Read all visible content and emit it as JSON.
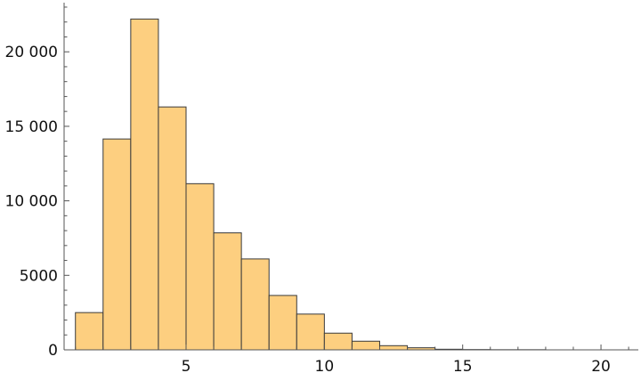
{
  "chart_data": {
    "type": "bar",
    "subtype": "histogram",
    "bin_edges": [
      1,
      2,
      3,
      4,
      5,
      6,
      7,
      8,
      9,
      10,
      11,
      12,
      13,
      14,
      15,
      16,
      17,
      18
    ],
    "values": [
      2500,
      14150,
      22200,
      16300,
      11150,
      7850,
      6100,
      3650,
      2400,
      1120,
      580,
      280,
      140,
      40,
      20,
      10,
      10
    ],
    "xlim": [
      0.6,
      21.3
    ],
    "ylim": [
      0,
      23400
    ],
    "xticks": [
      5,
      10,
      15,
      20
    ],
    "xtick_labels": [
      "5",
      "10",
      "15",
      "20"
    ],
    "yticks": [
      0,
      5000,
      10000,
      15000,
      20000
    ],
    "ytick_labels": [
      "0",
      "5000",
      "10 000",
      "15 000",
      "20 000"
    ],
    "grid": false,
    "colors": {
      "bar_fill": "#FDCF80",
      "bar_edge": "#3a3a3a",
      "axis": "#555555"
    }
  }
}
